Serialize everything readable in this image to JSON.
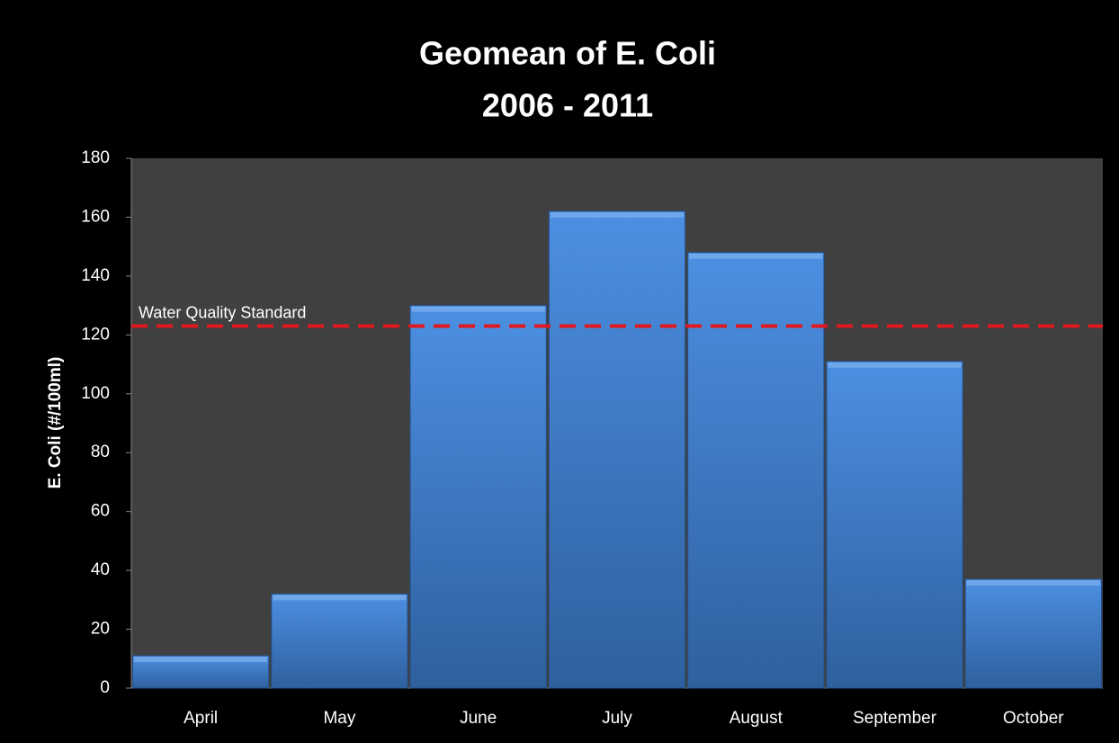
{
  "chart_data": {
    "type": "bar",
    "title": "Geomean of E. Coli",
    "subtitle": "2006 - 2011",
    "y_label": "E. Coli (#/100ml)",
    "categories": [
      "April",
      "May",
      "June",
      "July",
      "August",
      "September",
      "October"
    ],
    "values": [
      11,
      32,
      130,
      162,
      148,
      111,
      37
    ],
    "color": "#4a89d8",
    "ylim": [
      0,
      180
    ],
    "yticks": [
      0,
      20,
      40,
      60,
      80,
      100,
      120,
      140,
      160,
      180
    ],
    "grid": false,
    "reference_line": {
      "value": 123,
      "label": "Water Quality Standard",
      "color": "#e0191e"
    }
  }
}
